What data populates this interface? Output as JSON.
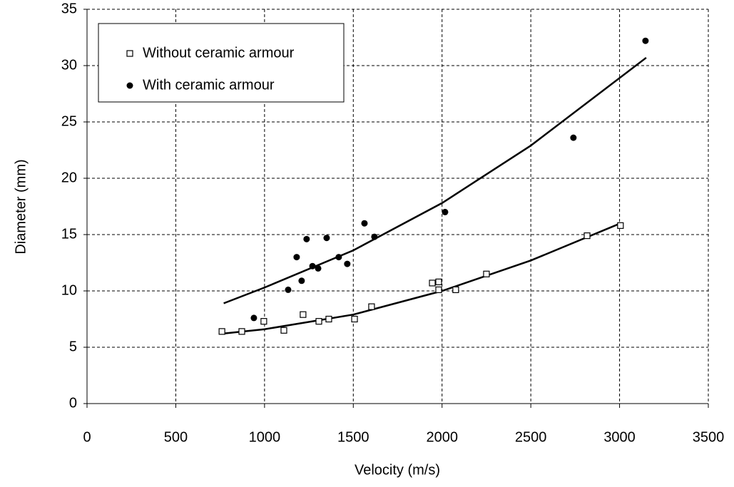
{
  "chart_data": {
    "type": "scatter",
    "xlabel": "Velocity (m/s)",
    "ylabel": "Diameter (mm)",
    "xlim": [
      0,
      3500
    ],
    "xticks": [
      0,
      500,
      1000,
      1500,
      2000,
      2500,
      3000,
      3500
    ],
    "ylim": [
      0,
      35
    ],
    "yticks": [
      0,
      5,
      10,
      15,
      20,
      25,
      30,
      35
    ],
    "grid": true,
    "legend": "upper left",
    "series": [
      {
        "name": "Without ceramic armour",
        "color": "#000000",
        "marker": "open-square",
        "x": [
          760,
          872,
          996,
          1109,
          1217,
          1306,
          1362,
          1507,
          1603,
          1945,
          1981,
          1981,
          2077,
          2250,
          2817,
          3005
        ],
        "values": [
          6.4,
          6.4,
          7.3,
          6.5,
          7.9,
          7.3,
          7.5,
          7.5,
          8.6,
          10.7,
          10.8,
          10.1,
          10.1,
          11.5,
          14.9,
          15.8
        ],
        "trendline": {
          "x": [
            760,
            1000,
            1500,
            2000,
            2500,
            3005
          ],
          "values": [
            6.2,
            6.6,
            7.9,
            10.0,
            12.7,
            16.0
          ]
        }
      },
      {
        "name": "With ceramic armour",
        "color": "#000000",
        "marker": "filled-circle",
        "x": [
          940,
          1133,
          1181,
          1209,
          1237,
          1270,
          1302,
          1350,
          1418,
          1466,
          1563,
          1619,
          2017,
          2740,
          3146
        ],
        "values": [
          7.6,
          10.1,
          13.0,
          10.9,
          14.6,
          12.2,
          12.0,
          14.7,
          13.0,
          12.4,
          16.0,
          14.8,
          17.0,
          23.6,
          32.2
        ],
        "trendline": {
          "x": [
            770,
            1000,
            1500,
            2000,
            2500,
            3150
          ],
          "values": [
            8.9,
            10.3,
            13.6,
            17.8,
            22.9,
            30.7
          ]
        }
      }
    ]
  }
}
